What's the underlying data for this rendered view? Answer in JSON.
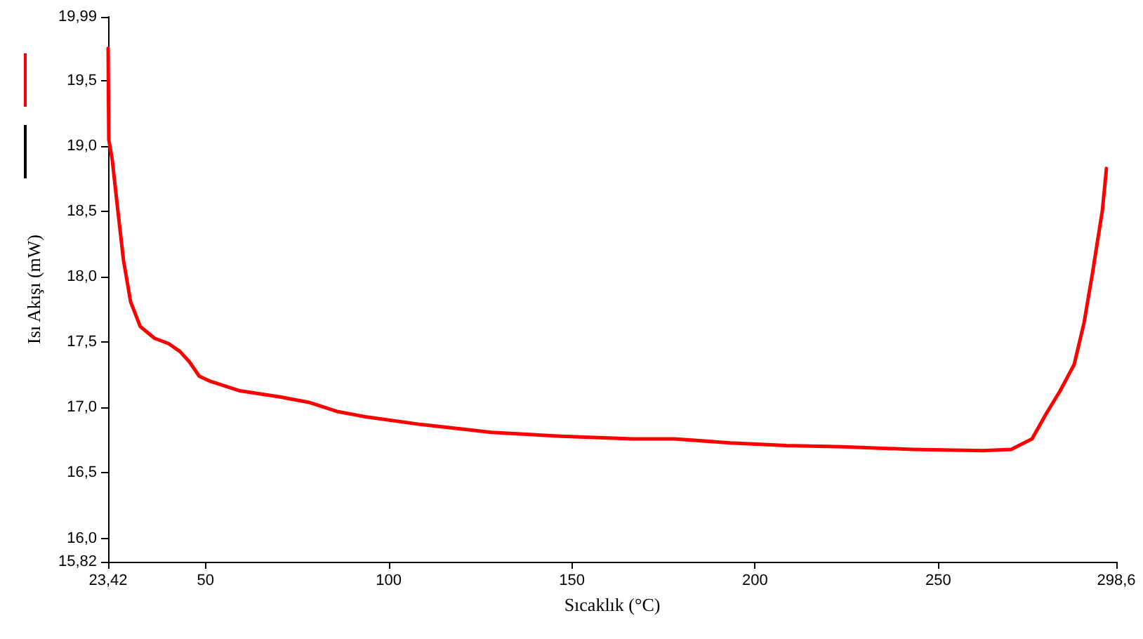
{
  "chart_data": {
    "type": "line",
    "xlabel": "Sıcaklık (°C)",
    "ylabel": "Isı Akışı (mW)",
    "xlim": [
      23.42,
      298.6
    ],
    "ylim": [
      15.82,
      19.99
    ],
    "xticks": [
      {
        "value": 23.42,
        "label": "23,42"
      },
      50,
      100,
      150,
      200,
      250,
      {
        "value": 298.6,
        "label": "298,6"
      }
    ],
    "yticks": [
      {
        "value": 15.82,
        "label": "15,82"
      },
      {
        "value": 16.0,
        "label": "16,0"
      },
      {
        "value": 16.5,
        "label": "16,5"
      },
      {
        "value": 17.0,
        "label": "17,0"
      },
      {
        "value": 17.5,
        "label": "17,5"
      },
      {
        "value": 18.0,
        "label": "18,0"
      },
      {
        "value": 18.5,
        "label": "18,5"
      },
      {
        "value": 19.0,
        "label": "19,0"
      },
      {
        "value": 19.5,
        "label": "19,5"
      },
      {
        "value": 19.99,
        "label": "19,99"
      }
    ],
    "grid": false,
    "marker": "none",
    "line_style": "solid",
    "series": [
      {
        "color": "#ff0000",
        "x": [
          23.42,
          23.6,
          24.57,
          26.1,
          27.6,
          29.55,
          32.2,
          36.1,
          39.9,
          43.0,
          45.6,
          48.3,
          51.4,
          59.1,
          70.6,
          78.2,
          85.9,
          93.6,
          108.9,
          128.1,
          147.2,
          166.4,
          177.9,
          193.2,
          208.5,
          223.9,
          243.0,
          262.2,
          269.9,
          275.6,
          279.4,
          283.3,
          287.1,
          289.8,
          292.1,
          294.8,
          295.9
        ],
        "values": [
          19.75,
          19.05,
          18.89,
          18.5,
          18.13,
          17.81,
          17.62,
          17.53,
          17.49,
          17.43,
          17.35,
          17.24,
          17.2,
          17.13,
          17.08,
          17.04,
          16.97,
          16.93,
          16.87,
          16.81,
          16.78,
          16.76,
          16.76,
          16.73,
          16.71,
          16.7,
          16.68,
          16.67,
          16.68,
          16.76,
          16.95,
          17.13,
          17.33,
          17.65,
          18.03,
          18.51,
          18.83
        ]
      }
    ]
  }
}
